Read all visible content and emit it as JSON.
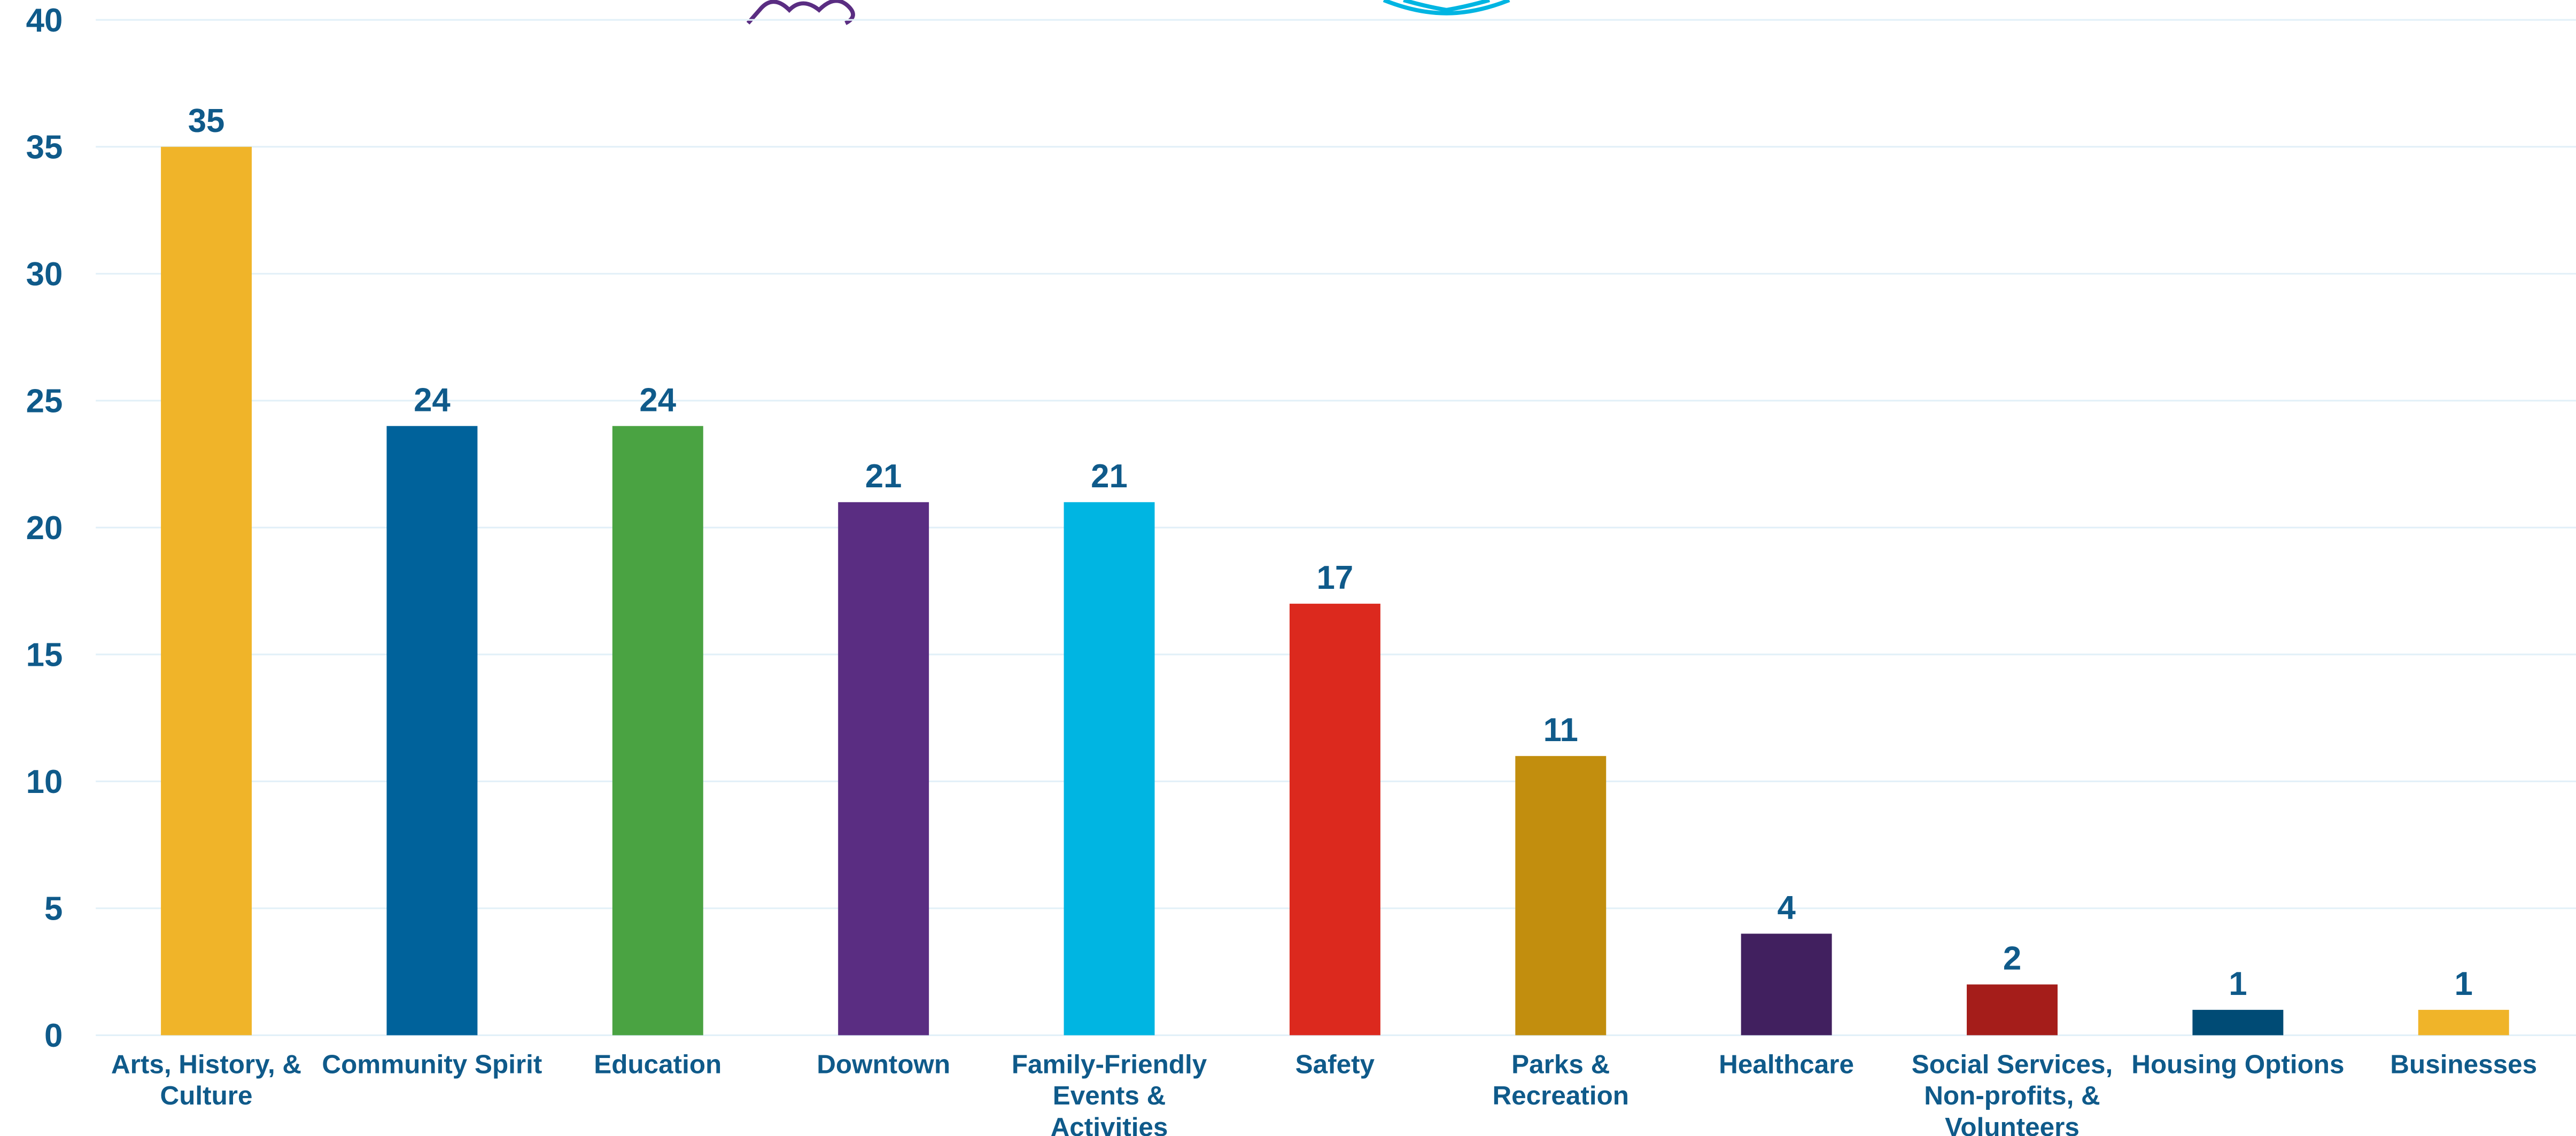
{
  "chart_data": {
    "type": "bar",
    "categories": [
      "Arts, History, & Culture",
      "Community Spirit",
      "Education",
      "Downtown",
      "Family-Friendly Events & Activities",
      "Safety",
      "Parks & Recreation",
      "Healthcare",
      "Social Services, Non-profits, & Volunteers",
      "Housing Options",
      "Businesses"
    ],
    "values": [
      35,
      24,
      24,
      21,
      21,
      17,
      11,
      4,
      2,
      1,
      1
    ],
    "colors": [
      "#f0b429",
      "#00629b",
      "#4aa342",
      "#5a2d82",
      "#00b5e2",
      "#dc291e",
      "#c28e0e",
      "#41205f",
      "#a51d1a",
      "#004b75",
      "#f0b429"
    ],
    "ylim": [
      0,
      40
    ],
    "yticks": [
      0,
      5,
      10,
      15,
      20,
      25,
      30,
      35,
      40
    ],
    "grid": true
  }
}
